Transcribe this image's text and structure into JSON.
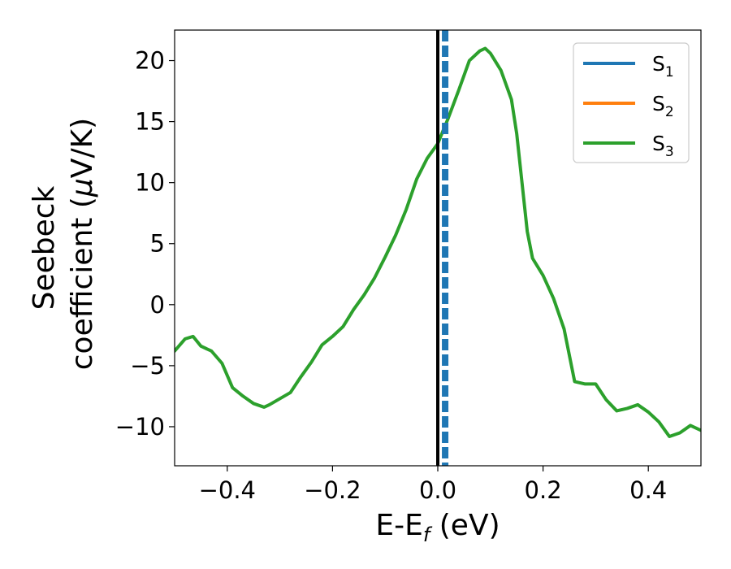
{
  "chart_data": {
    "type": "line",
    "xlabel": {
      "main": "E-E",
      "sub": "f",
      "unit": " (eV)"
    },
    "ylabel": {
      "line1": "Seebeck",
      "line2_pre": "coefficient  (",
      "line2_mu": "μ",
      "line2_post": "V/K)"
    },
    "xlim": [
      -0.5,
      0.5
    ],
    "ylim": [
      -13.2,
      22.5
    ],
    "xticks": [
      -0.4,
      -0.2,
      0.0,
      0.2,
      0.4
    ],
    "xtick_labels": [
      "−0.4",
      "−0.2",
      "0.0",
      "0.2",
      "0.4"
    ],
    "yticks": [
      -10,
      -5,
      0,
      5,
      10,
      15,
      20
    ],
    "ytick_labels": [
      "−10",
      "−5",
      "0",
      "5",
      "10",
      "15",
      "20"
    ],
    "grid": false,
    "legend_position": "top-right",
    "reference_lines": [
      {
        "x": 0.0,
        "style": "solid",
        "color": "#000000"
      },
      {
        "x": 0.014,
        "style": "dashed",
        "color": "#1f77b4"
      }
    ],
    "series": [
      {
        "name": "S",
        "sub": "1",
        "color": "#1f77b4",
        "visible_in_plot": false
      },
      {
        "name": "S",
        "sub": "2",
        "color": "#ff7f0e",
        "visible_in_plot": false
      },
      {
        "name": "S",
        "sub": "3",
        "color": "#2ca02c",
        "visible_in_plot": true
      }
    ],
    "x": [
      -0.5,
      -0.48,
      -0.465,
      -0.45,
      -0.43,
      -0.41,
      -0.39,
      -0.37,
      -0.35,
      -0.33,
      -0.32,
      -0.3,
      -0.28,
      -0.26,
      -0.24,
      -0.22,
      -0.2,
      -0.18,
      -0.16,
      -0.14,
      -0.12,
      -0.1,
      -0.08,
      -0.06,
      -0.04,
      -0.02,
      0.0,
      0.02,
      0.04,
      0.06,
      0.08,
      0.09,
      0.1,
      0.12,
      0.14,
      0.15,
      0.16,
      0.17,
      0.18,
      0.2,
      0.22,
      0.24,
      0.26,
      0.28,
      0.3,
      0.32,
      0.34,
      0.36,
      0.38,
      0.4,
      0.42,
      0.44,
      0.46,
      0.48,
      0.5
    ],
    "y": [
      -3.8,
      -2.8,
      -2.6,
      -3.4,
      -3.8,
      -4.8,
      -6.8,
      -7.5,
      -8.1,
      -8.4,
      -8.2,
      -7.7,
      -7.2,
      -5.9,
      -4.7,
      -3.3,
      -2.6,
      -1.8,
      -0.4,
      0.8,
      2.2,
      3.9,
      5.7,
      7.8,
      10.3,
      12.0,
      13.2,
      15.3,
      17.6,
      20.0,
      20.8,
      21.0,
      20.6,
      19.2,
      16.8,
      14.0,
      10.0,
      6.0,
      3.8,
      2.4,
      0.5,
      -2.0,
      -6.3,
      -6.5,
      -6.5,
      -7.8,
      -8.7,
      -8.5,
      -8.2,
      -8.8,
      -9.6,
      -10.8,
      -10.5,
      -9.9,
      -10.3
    ]
  }
}
